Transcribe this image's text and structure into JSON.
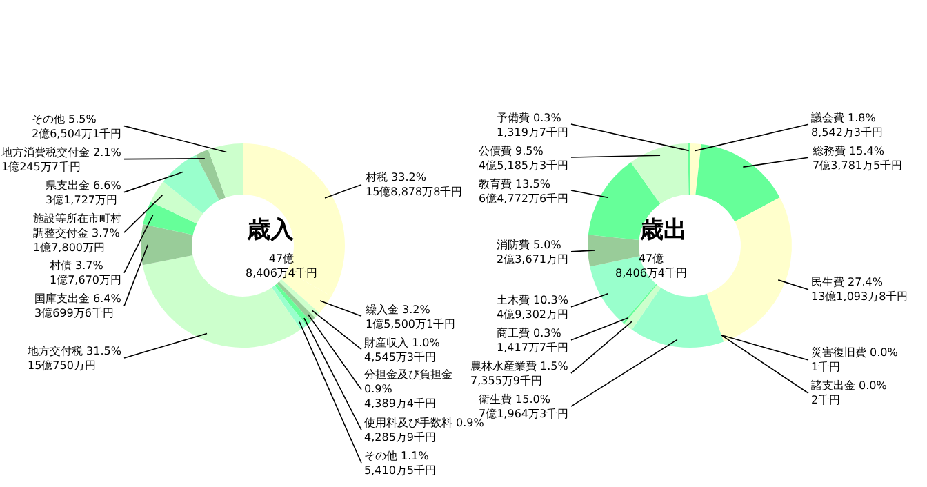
{
  "chart_data": [
    {
      "type": "donut",
      "title": "歳入",
      "subtitle": "47億\n8,406万4千円",
      "categories": [
        "村税 33.2%\n15億8,878万8千円",
        "繰入金 3.2%\n1億5,500万1千円",
        "財産収入 1.0%\n4,545万3千円",
        "分担金及び負担金\n0.9%\n4,389万4千円",
        "使用料及び手数料 0.9%\n4,285万9千円",
        "その他 1.1%\n5,410万5千円",
        "地方交付税 31.5%\n15億750万円",
        "国庫支出金 6.4%\n3億699万6千円",
        "村債 3.7%\n1億7,670万円",
        "施設等所在市町村調整交付金 3.7%\n1億7,800万円",
        "県支出金 6.6%\n3億1,727万円",
        "地方消費税交付金 2.1%\n1億245万7千円",
        "その他 5.5%\n2億6,504万1千円"
      ],
      "values": [
        33.2,
        3.2,
        1.0,
        0.9,
        0.9,
        1.1,
        31.5,
        6.4,
        3.7,
        3.7,
        6.6,
        2.1,
        5.5
      ],
      "colors": [
        "#ffffcc",
        "#ffffcc",
        "#ccffcc",
        "#99cc99",
        "#66ff99",
        "#99ffcc",
        "#ccffcc",
        "#99cc99",
        "#66ff99",
        "#ccffcc",
        "#99ffcc",
        "#99cc99",
        "#ccffcc"
      ]
    },
    {
      "type": "donut",
      "title": "歳出",
      "subtitle": "47億\n8,406万4千円",
      "categories": [
        "議会費 1.8%\n8,542万3千円",
        "総務費 15.4%\n7億3,781万5千円",
        "民生費 27.4%\n13億1,093万8千円",
        "災害復旧費 0.0%\n1千円",
        "諸支出金 0.0%\n2千円",
        "衛生費 15.0%\n7億1,964万3千円",
        "農林水産業費 1.5%\n7,355万9千円",
        "商工費 0.3%\n1,417万7千円",
        "土木費 10.3%\n4億9,302万円",
        "消防費 5.0%\n2億3,671万円",
        "教育費 13.5%\n6億4,772万6千円",
        "公債費 9.5%\n4億5,185万3千円",
        "予備費 0.3%\n1,319万7千円"
      ],
      "values": [
        1.8,
        15.4,
        27.4,
        0.0,
        0.0,
        15.0,
        1.5,
        0.3,
        10.3,
        5.0,
        13.5,
        9.5,
        0.3
      ],
      "colors": [
        "#ffffcc",
        "#66ff99",
        "#ffffcc",
        "#ffffcc",
        "#ffffcc",
        "#99ffcc",
        "#ccffcc",
        "#66ff99",
        "#99ffcc",
        "#99cc99",
        "#66ff99",
        "#ccffcc",
        "#66ff99"
      ]
    }
  ]
}
